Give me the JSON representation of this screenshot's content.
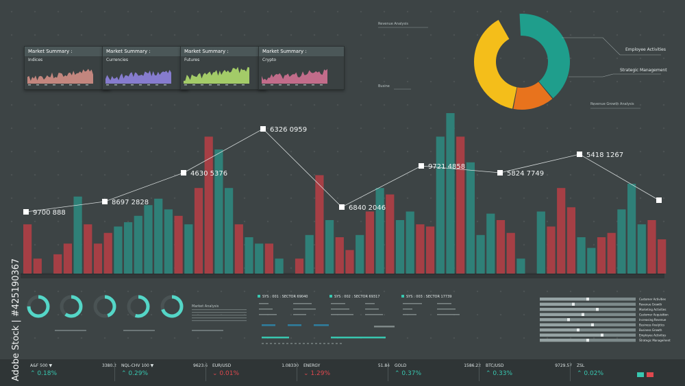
{
  "cards": [
    {
      "title": "Market Summary :",
      "subtitle": "Indices",
      "color": "#c98a82"
    },
    {
      "title": "Market Summary :",
      "subtitle": "Currencies",
      "color": "#8a7fd6"
    },
    {
      "title": "Market Summary :",
      "subtitle": "Futures",
      "color": "#a9d36a"
    },
    {
      "title": "Market Summary :",
      "subtitle": "Crypto",
      "color": "#c86f8e"
    }
  ],
  "small_labels": {
    "revenue_analysis": "Revenue Analysis",
    "busine": "Busine",
    "revenue_growth": "Revenue Growth Analysis",
    "market_analysis": "Market Analysis"
  },
  "chart_data": [
    {
      "type": "bar",
      "series": [
        {
          "color": "#a63f45",
          "values": [
            23,
            8,
            0,
            10,
            17,
            0,
            23,
            17,
            22,
            0,
            0,
            0,
            0,
            0,
            0,
            0,
            0,
            0,
            0,
            0,
            0,
            0,
            0,
            0,
            0,
            0,
            0,
            0,
            0,
            0,
            0,
            0,
            0,
            0,
            0,
            0,
            0,
            0,
            0,
            0,
            0,
            0,
            0,
            0,
            0,
            0,
            0,
            0,
            0,
            0,
            0,
            0,
            0,
            0,
            0,
            0,
            0,
            0,
            0,
            0,
            0,
            0,
            0,
            0,
            0,
            0,
            0
          ]
        },
        {
          "color": "#2f8078",
          "values": [
            0,
            0,
            0,
            0,
            0,
            36,
            0,
            0,
            0,
            0,
            0,
            0,
            0,
            0,
            0,
            0,
            0,
            0,
            0,
            0,
            0,
            0,
            0,
            0,
            0,
            0,
            0,
            0,
            0,
            0,
            0,
            0,
            0,
            0,
            0,
            0,
            0,
            0,
            0,
            0,
            0,
            0,
            0,
            0,
            0,
            0,
            0,
            0,
            0,
            0,
            0,
            0,
            0,
            0,
            0,
            0,
            0,
            0,
            0,
            0,
            0,
            0,
            0,
            0,
            0,
            0,
            0
          ]
        }
      ],
      "bars": [
        {
          "v": 23,
          "c": "r"
        },
        {
          "v": 7,
          "c": "r"
        },
        {
          "v": 0,
          "c": "n"
        },
        {
          "v": 9,
          "c": "r"
        },
        {
          "v": 14,
          "c": "r"
        },
        {
          "v": 36,
          "c": "t"
        },
        {
          "v": 23,
          "c": "r"
        },
        {
          "v": 14,
          "c": "r"
        },
        {
          "v": 19,
          "c": "r"
        },
        {
          "v": 22,
          "c": "t"
        },
        {
          "v": 24,
          "c": "t"
        },
        {
          "v": 27,
          "c": "t"
        },
        {
          "v": 32,
          "c": "t"
        },
        {
          "v": 35,
          "c": "t"
        },
        {
          "v": 30,
          "c": "t"
        },
        {
          "v": 27,
          "c": "r"
        },
        {
          "v": 23,
          "c": "t"
        },
        {
          "v": 40,
          "c": "r"
        },
        {
          "v": 64,
          "c": "r"
        },
        {
          "v": 58,
          "c": "t"
        },
        {
          "v": 40,
          "c": "t"
        },
        {
          "v": 23,
          "c": "r"
        },
        {
          "v": 17,
          "c": "t"
        },
        {
          "v": 14,
          "c": "t"
        },
        {
          "v": 14,
          "c": "r"
        },
        {
          "v": 7,
          "c": "t"
        },
        {
          "v": 0,
          "c": "n"
        },
        {
          "v": 7,
          "c": "r"
        },
        {
          "v": 18,
          "c": "t"
        },
        {
          "v": 46,
          "c": "r"
        },
        {
          "v": 25,
          "c": "t"
        },
        {
          "v": 17,
          "c": "r"
        },
        {
          "v": 11,
          "c": "r"
        },
        {
          "v": 18,
          "c": "t"
        },
        {
          "v": 29,
          "c": "r"
        },
        {
          "v": 40,
          "c": "t"
        },
        {
          "v": 37,
          "c": "r"
        },
        {
          "v": 25,
          "c": "t"
        },
        {
          "v": 29,
          "c": "t"
        },
        {
          "v": 23,
          "c": "r"
        },
        {
          "v": 22,
          "c": "r"
        },
        {
          "v": 64,
          "c": "t"
        },
        {
          "v": 75,
          "c": "t"
        },
        {
          "v": 64,
          "c": "r"
        },
        {
          "v": 52,
          "c": "t"
        },
        {
          "v": 18,
          "c": "t"
        },
        {
          "v": 28,
          "c": "t"
        },
        {
          "v": 25,
          "c": "r"
        },
        {
          "v": 19,
          "c": "r"
        },
        {
          "v": 7,
          "c": "t"
        },
        {
          "v": 0,
          "c": "n"
        },
        {
          "v": 29,
          "c": "t"
        },
        {
          "v": 22,
          "c": "r"
        },
        {
          "v": 40,
          "c": "r"
        },
        {
          "v": 31,
          "c": "r"
        },
        {
          "v": 17,
          "c": "t"
        },
        {
          "v": 12,
          "c": "t"
        },
        {
          "v": 17,
          "c": "r"
        },
        {
          "v": 19,
          "c": "r"
        },
        {
          "v": 30,
          "c": "t"
        },
        {
          "v": 42,
          "c": "t"
        },
        {
          "v": 23,
          "c": "t"
        },
        {
          "v": 25,
          "c": "r"
        },
        {
          "v": 16,
          "c": "r"
        }
      ],
      "line_points": [
        {
          "x": 0,
          "y": 0,
          "label": "9700 888"
        },
        {
          "x": 1,
          "y": 0,
          "label": "8697 2828"
        },
        {
          "x": 2,
          "y": 0,
          "label": "4630 5376"
        },
        {
          "x": 3,
          "y": 0,
          "label": "6326 0959"
        },
        {
          "x": 4,
          "y": 0,
          "label": "6840 2046"
        },
        {
          "x": 5,
          "y": 0,
          "label": "9721 4858"
        },
        {
          "x": 6,
          "y": 0,
          "label": "5824 7749"
        },
        {
          "x": 7,
          "y": 0,
          "label": "5418 1267"
        },
        {
          "x": 8,
          "y": 0,
          "label": ""
        }
      ]
    },
    {
      "type": "pie",
      "slices": [
        {
          "value": 43,
          "color": "#1f9e8c",
          "label": "Employee Activities"
        },
        {
          "value": 15,
          "color": "#e8731d",
          "label": "Strategic Management"
        },
        {
          "value": 42,
          "color": "#f4be1a",
          "label": ""
        }
      ]
    },
    {
      "type": "bar",
      "orientation": "horizontal",
      "categories": [
        "Customer Activities",
        "Revenue Growth",
        "Marketing Activities",
        "Customer Acquisition",
        "Increasing Revenue",
        "Business Analytics",
        "Business Growth",
        "Employee Activities",
        "Strategic Management"
      ],
      "values": [
        0.5,
        0.35,
        0.6,
        0.45,
        0.3,
        0.55,
        0.4,
        0.65,
        0.5
      ]
    }
  ],
  "gauges": [
    0.75,
    0.6,
    0.45,
    0.55,
    0.7
  ],
  "sectors": [
    "SYS : 001 : SECTOR 69040",
    "SYS : 002 : SECTOR 69317",
    "SYS : 003 : SECTOR 17739"
  ],
  "tickers": [
    {
      "name": "A&F 500 ▼",
      "value": "3380.2",
      "change": "0.18%",
      "up": true
    },
    {
      "name": "NQL-CHV 100 ▼",
      "value": "9623.6",
      "change": "0.29%",
      "up": true
    },
    {
      "name": "EUR/USD",
      "value": "1.08330",
      "change": "0.01%",
      "up": false
    },
    {
      "name": "ENERGY",
      "value": "51.84",
      "change": "1.29%",
      "up": false
    },
    {
      "name": "GOLD",
      "value": "1586.22",
      "change": "0.37%",
      "up": true
    },
    {
      "name": "BTC/USD",
      "value": "9729.57",
      "change": "0.33%",
      "up": true
    },
    {
      "name": "ZSL",
      "value": "",
      "change": "0.02%",
      "up": true
    }
  ],
  "watermark": "Adobe Stock | #425190367",
  "colors": {
    "teal": "#2f8078",
    "red": "#a63f45",
    "up": "#38c7b0",
    "down": "#e0484e"
  }
}
